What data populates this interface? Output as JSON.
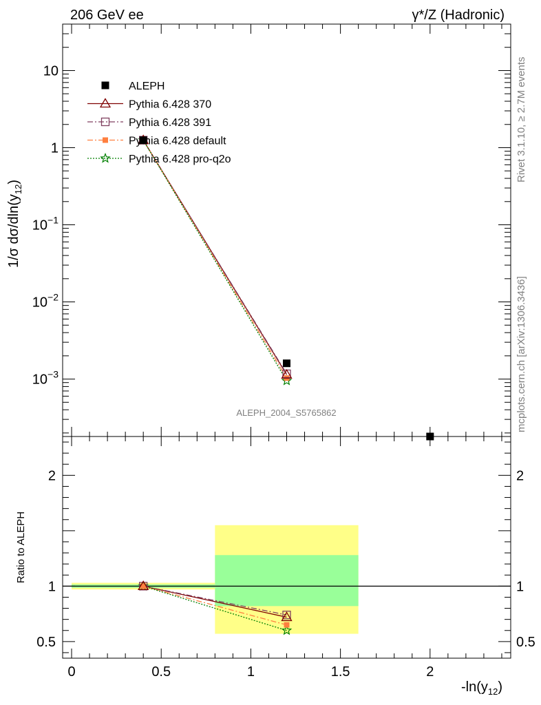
{
  "header": {
    "left": "206 GeV ee",
    "right": "γ*/Z (Hadronic)"
  },
  "side_text": {
    "rivet": "Rivet 3.1.10, ≥ 2.7M events",
    "mcplots": "mcplots.cern.ch [arXiv:1306.3436]"
  },
  "analysis_label": "ALEPH_2004_S5765862",
  "main_ylabel": "1/σ dσ/dln(y12)",
  "ratio_ylabel": "Ratio to ALEPH",
  "xlabel": "-ln(y12)",
  "colors": {
    "data": "#000000",
    "p370": "#7f0000",
    "p391": "#7f3f5f",
    "pdefault": "#ff7f3f",
    "pq2o": "#007f00",
    "band_yellow": "#ffff88",
    "band_green": "#99ff99"
  },
  "chart_data": [
    {
      "type": "line",
      "yscale": "log",
      "xlim": [
        -0.05,
        2.45
      ],
      "ylim": [
        0.00018,
        40
      ],
      "xticks": [
        0,
        0.5,
        1,
        1.5,
        2
      ],
      "yticks": [
        {
          "value": 10,
          "label": "10"
        },
        {
          "value": 1,
          "label": "1"
        },
        {
          "value": 0.1,
          "label": "10^-1"
        },
        {
          "value": 0.01,
          "label": "10^-2"
        },
        {
          "value": 0.001,
          "label": "10^-3"
        }
      ],
      "series": [
        {
          "name": "ALEPH",
          "key": "data",
          "marker": "square",
          "dash": "none",
          "points": [
            [
              0.4,
              1.25
            ],
            [
              1.2,
              0.0016
            ],
            [
              2.0,
              0.00018
            ]
          ]
        },
        {
          "name": "Pythia 6.428 370",
          "key": "p370",
          "marker": "triangle",
          "dash": "none",
          "points": [
            [
              0.4,
              1.25
            ],
            [
              1.2,
              0.00114
            ]
          ]
        },
        {
          "name": "Pythia 6.428 391",
          "key": "p391",
          "marker": "opensquare",
          "dash": "8,3,2,3",
          "points": [
            [
              0.4,
              1.25
            ],
            [
              1.2,
              0.00117
            ]
          ]
        },
        {
          "name": "Pythia 6.428 default",
          "key": "pdefault",
          "marker": "filledsquare",
          "dash": "8,3,2,3",
          "points": [
            [
              0.4,
              1.25
            ],
            [
              1.2,
              0.00103
            ]
          ]
        },
        {
          "name": "Pythia 6.428 pro-q2o",
          "key": "pq2o",
          "marker": "star",
          "dash": "2,2",
          "points": [
            [
              0.4,
              1.25
            ],
            [
              1.2,
              0.00095
            ]
          ]
        }
      ]
    },
    {
      "type": "line",
      "xlim": [
        -0.05,
        2.45
      ],
      "ylim": [
        0.35,
        2.35
      ],
      "xticks": [
        0,
        0.5,
        1,
        1.5,
        2
      ],
      "yticks": [
        0.5,
        1,
        2
      ],
      "bands": [
        {
          "x": [
            0,
            0.8
          ],
          "yellow": [
            0.97,
            1.03
          ],
          "green": [
            0.985,
            1.015
          ]
        },
        {
          "x": [
            0.8,
            1.6
          ],
          "yellow": [
            0.57,
            1.55
          ],
          "green": [
            0.82,
            1.28
          ]
        }
      ],
      "series": [
        {
          "name": "Pythia 6.428 370",
          "key": "p370",
          "marker": "triangle",
          "dash": "none",
          "points": [
            [
              0.4,
              1.0
            ],
            [
              1.2,
              0.72
            ]
          ]
        },
        {
          "name": "Pythia 6.428 391",
          "key": "p391",
          "marker": "opensquare",
          "dash": "8,3,2,3",
          "points": [
            [
              0.4,
              1.0
            ],
            [
              1.2,
              0.74
            ]
          ]
        },
        {
          "name": "Pythia 6.428 default",
          "key": "pdefault",
          "marker": "filledsquare",
          "dash": "8,3,2,3",
          "points": [
            [
              0.4,
              1.0
            ],
            [
              1.2,
              0.65
            ]
          ]
        },
        {
          "name": "Pythia 6.428 pro-q2o",
          "key": "pq2o",
          "marker": "star",
          "dash": "2,2",
          "points": [
            [
              0.4,
              1.0
            ],
            [
              1.2,
              0.6
            ]
          ]
        }
      ]
    }
  ]
}
